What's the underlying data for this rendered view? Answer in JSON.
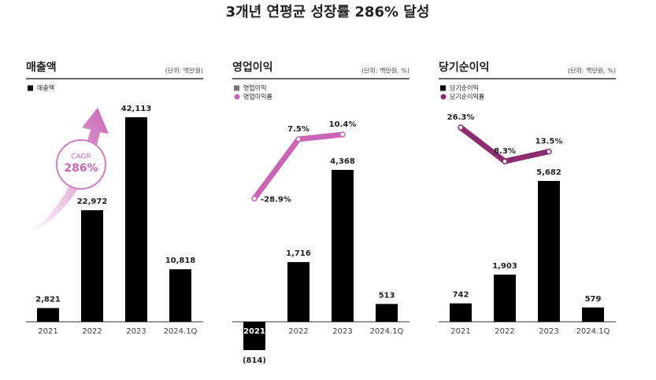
{
  "title": "3개년 연평균 성장률 286% 달성",
  "chart_data": [
    {
      "type": "bar",
      "title": "매출액",
      "unit": "(단위: 백만원)",
      "categories": [
        "2021",
        "2022",
        "2023",
        "2024.1Q"
      ],
      "series": [
        {
          "name": "매출액",
          "color": "#000000",
          "values": [
            2821,
            22972,
            42113,
            10818
          ],
          "value_labels": [
            "2,821",
            "22,972",
            "42,113",
            "10,818"
          ]
        }
      ],
      "annotation": [
        "CAGR",
        "286%"
      ]
    },
    {
      "type": "bar-line",
      "title": "영업이익",
      "unit": "(단위: 백만원, %)",
      "categories": [
        "2021",
        "2022",
        "2023",
        "2024.1Q"
      ],
      "series": [
        {
          "name": "영업이익",
          "color": "#000000",
          "legend_color": "#777777",
          "values": [
            -814,
            1716,
            4368,
            513
          ],
          "value_labels": [
            "(814)",
            "1,716",
            "4,368",
            "513"
          ]
        },
        {
          "name": "영업이익률",
          "color": "#c964b6",
          "axis": "y2",
          "values": [
            -28.9,
            7.5,
            10.4,
            null
          ],
          "value_labels": [
            "-28.9%",
            "7.5%",
            "10.4%",
            null
          ]
        }
      ]
    },
    {
      "type": "bar-line",
      "title": "당기순이익",
      "unit": "(단위: 백만원, %)",
      "categories": [
        "2021",
        "2022",
        "2023",
        "2024.1Q"
      ],
      "series": [
        {
          "name": "당기순이익",
          "color": "#000000",
          "values": [
            742,
            1903,
            5682,
            579
          ],
          "value_labels": [
            "742",
            "1,903",
            "5,682",
            "579"
          ]
        },
        {
          "name": "당기순이익률",
          "color": "#8c2b70",
          "axis": "y2",
          "values": [
            26.3,
            8.3,
            13.5,
            null
          ],
          "value_labels": [
            "26.3%",
            "8.3%",
            "13.5%",
            null
          ]
        }
      ]
    }
  ]
}
